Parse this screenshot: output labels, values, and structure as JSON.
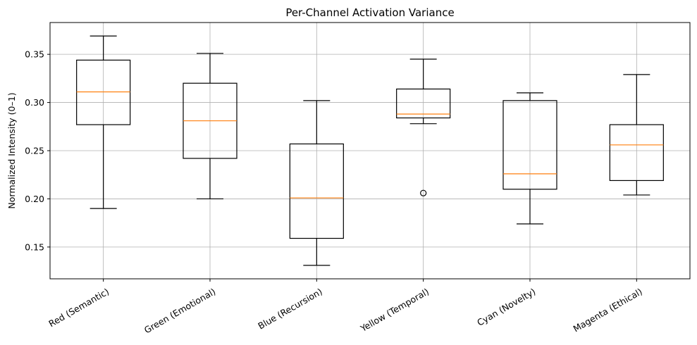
{
  "chart_data": {
    "type": "box",
    "title": "Per-Channel Activation Variance",
    "xlabel": "",
    "ylabel": "Normalized Intensity (0–1)",
    "ylim": [
      0.117,
      0.383
    ],
    "yticks": [
      0.15,
      0.2,
      0.25,
      0.3,
      0.35
    ],
    "ytick_labels": [
      "0.15",
      "0.20",
      "0.25",
      "0.30",
      "0.35"
    ],
    "grid": true,
    "categories": [
      "Red (Semantic)",
      "Green (Emotional)",
      "Blue (Recursion)",
      "Yellow (Temporal)",
      "Cyan (Novelty)",
      "Magenta (Ethical)"
    ],
    "boxes": [
      {
        "whisker_low": 0.19,
        "q1": 0.277,
        "median": 0.311,
        "q3": 0.344,
        "whisker_high": 0.369,
        "outliers": []
      },
      {
        "whisker_low": 0.2,
        "q1": 0.242,
        "median": 0.281,
        "q3": 0.32,
        "whisker_high": 0.351,
        "outliers": []
      },
      {
        "whisker_low": 0.131,
        "q1": 0.159,
        "median": 0.201,
        "q3": 0.257,
        "whisker_high": 0.302,
        "outliers": []
      },
      {
        "whisker_low": 0.278,
        "q1": 0.284,
        "median": 0.288,
        "q3": 0.314,
        "whisker_high": 0.345,
        "outliers": [
          0.206
        ]
      },
      {
        "whisker_low": 0.174,
        "q1": 0.21,
        "median": 0.226,
        "q3": 0.302,
        "whisker_high": 0.31,
        "outliers": []
      },
      {
        "whisker_low": 0.204,
        "q1": 0.219,
        "median": 0.256,
        "q3": 0.277,
        "whisker_high": 0.329,
        "outliers": []
      }
    ],
    "colors": {
      "box": "#000000",
      "median": "#ff7f0e",
      "grid": "#b0b0b0"
    }
  }
}
